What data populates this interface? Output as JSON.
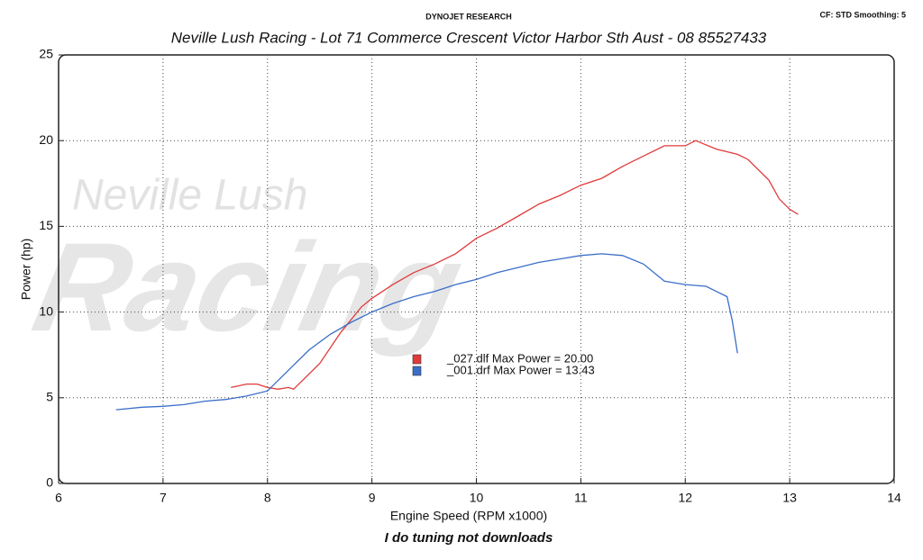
{
  "chart_data": {
    "type": "line",
    "header": "DYNOJET RESEARCH",
    "settings_label": "CF: STD  Smoothing: 5",
    "title": "Neville Lush Racing  - Lot 71 Commerce Crescent  Victor Harbor Sth Aust  - 08 85527433",
    "watermark": [
      "Neville Lush",
      "Racing"
    ],
    "x_label": "Engine Speed (RPM x1000)",
    "y_label": "Power (hp)",
    "footer": "I do tuning not downloads",
    "xlim": [
      6,
      14
    ],
    "xticks": [
      6,
      7,
      8,
      9,
      10,
      11,
      12,
      13,
      14
    ],
    "ylim": [
      0,
      25
    ],
    "yticks": [
      0,
      5,
      10,
      15,
      20,
      25
    ],
    "grid": true,
    "series": [
      {
        "name": "_027.dlf Max Power = 20.00",
        "color": "#e03a3a",
        "x": [
          7.65,
          7.8,
          7.9,
          8.0,
          8.1,
          8.2,
          8.25,
          8.5,
          8.7,
          8.9,
          9.0,
          9.2,
          9.4,
          9.6,
          9.8,
          10.0,
          10.2,
          10.4,
          10.6,
          10.8,
          11.0,
          11.2,
          11.4,
          11.6,
          11.8,
          12.0,
          12.1,
          12.3,
          12.5,
          12.6,
          12.8,
          12.9,
          13.0,
          13.08
        ],
        "values": [
          5.6,
          5.8,
          5.8,
          5.6,
          5.5,
          5.6,
          5.5,
          7.0,
          8.8,
          10.3,
          10.8,
          11.6,
          12.3,
          12.8,
          13.4,
          14.3,
          14.9,
          15.6,
          16.3,
          16.8,
          17.4,
          17.8,
          18.5,
          19.1,
          19.7,
          19.7,
          20.0,
          19.5,
          19.2,
          18.9,
          17.7,
          16.6,
          16.0,
          15.7
        ]
      },
      {
        "name": "_001.drf Max Power = 13.43",
        "color": "#3a6ec8",
        "x": [
          6.55,
          6.8,
          7.0,
          7.2,
          7.4,
          7.6,
          7.8,
          8.0,
          8.2,
          8.4,
          8.6,
          8.8,
          9.0,
          9.2,
          9.4,
          9.6,
          9.8,
          10.0,
          10.2,
          10.4,
          10.6,
          10.8,
          11.0,
          11.2,
          11.4,
          11.6,
          11.8,
          12.0,
          12.2,
          12.3,
          12.4,
          12.45,
          12.5
        ],
        "values": [
          4.3,
          4.45,
          4.5,
          4.6,
          4.8,
          4.9,
          5.1,
          5.4,
          6.6,
          7.8,
          8.7,
          9.4,
          10.0,
          10.5,
          10.9,
          11.2,
          11.6,
          11.9,
          12.3,
          12.6,
          12.9,
          13.1,
          13.3,
          13.4,
          13.3,
          12.8,
          11.8,
          11.6,
          11.5,
          11.2,
          10.9,
          9.5,
          7.6
        ]
      }
    ]
  }
}
